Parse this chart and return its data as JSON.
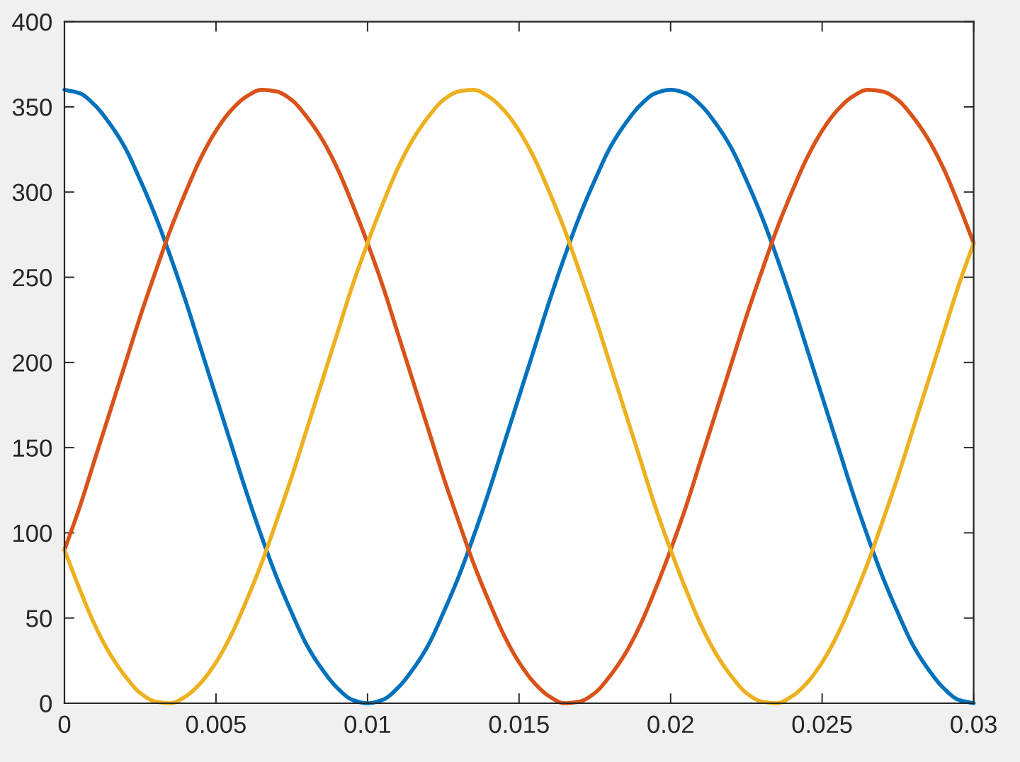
{
  "chart_data": {
    "type": "line",
    "x": [
      0,
      0.0005,
      0.001,
      0.0015,
      0.002,
      0.0025,
      0.003,
      0.0035,
      0.004,
      0.0045,
      0.005,
      0.0055,
      0.006,
      0.0065,
      0.007,
      0.0075,
      0.008,
      0.0085,
      0.009,
      0.0095,
      0.01,
      0.0105,
      0.011,
      0.0115,
      0.012,
      0.0125,
      0.013,
      0.0135,
      0.014,
      0.0145,
      0.015,
      0.0155,
      0.016,
      0.0165,
      0.017,
      0.0175,
      0.018,
      0.0185,
      0.019,
      0.0195,
      0.02,
      0.0205,
      0.021,
      0.0215,
      0.022,
      0.0225,
      0.023,
      0.0235,
      0.024,
      0.0245,
      0.025,
      0.0255,
      0.026,
      0.0265,
      0.027,
      0.0275,
      0.028,
      0.0285,
      0.029,
      0.0295,
      0.03
    ],
    "series": [
      {
        "color": "#0072bd",
        "values": [
          360,
          358,
          351,
          340,
          326,
          307,
          286,
          262,
          236,
          208,
          180,
          152,
          124,
          98,
          74,
          53,
          34,
          20,
          9,
          2,
          0,
          2,
          9,
          20,
          34,
          53,
          74,
          98,
          124,
          152,
          180,
          208,
          236,
          262,
          286,
          307,
          326,
          340,
          351,
          358,
          360,
          358,
          351,
          340,
          326,
          307,
          286,
          262,
          236,
          208,
          180,
          152,
          124,
          98,
          74,
          53,
          34,
          20,
          9,
          2,
          0
        ]
      },
      {
        "color": "#d95319",
        "values": [
          90,
          115,
          143,
          171,
          199,
          227,
          253,
          278,
          300,
          320,
          336,
          348,
          356,
          360,
          359,
          354,
          344,
          331,
          314,
          293,
          270,
          245,
          217,
          189,
          161,
          133,
          107,
          82,
          60,
          40,
          24,
          12,
          4,
          0,
          1,
          6,
          16,
          29,
          46,
          67,
          90,
          115,
          143,
          171,
          199,
          227,
          253,
          278,
          300,
          320,
          336,
          348,
          356,
          360,
          359,
          354,
          344,
          331,
          314,
          293,
          270
        ]
      },
      {
        "color": "#edb120",
        "values": [
          90,
          67,
          46,
          29,
          16,
          6,
          1,
          0,
          4,
          12,
          24,
          40,
          60,
          82,
          107,
          133,
          161,
          189,
          217,
          245,
          270,
          293,
          314,
          331,
          344,
          354,
          359,
          360,
          356,
          348,
          336,
          320,
          300,
          278,
          253,
          227,
          199,
          171,
          143,
          115,
          90,
          67,
          46,
          29,
          16,
          6,
          1,
          0,
          4,
          12,
          24,
          40,
          60,
          82,
          107,
          133,
          161,
          189,
          217,
          245,
          270
        ]
      }
    ],
    "xlim": [
      0,
      0.03
    ],
    "xticks": [
      0,
      0.005,
      0.01,
      0.015,
      0.02,
      0.025,
      0.03
    ],
    "ylim": [
      0,
      400
    ],
    "yticks": [
      0,
      50,
      100,
      150,
      200,
      250,
      300,
      350,
      400
    ],
    "grid": false
  }
}
